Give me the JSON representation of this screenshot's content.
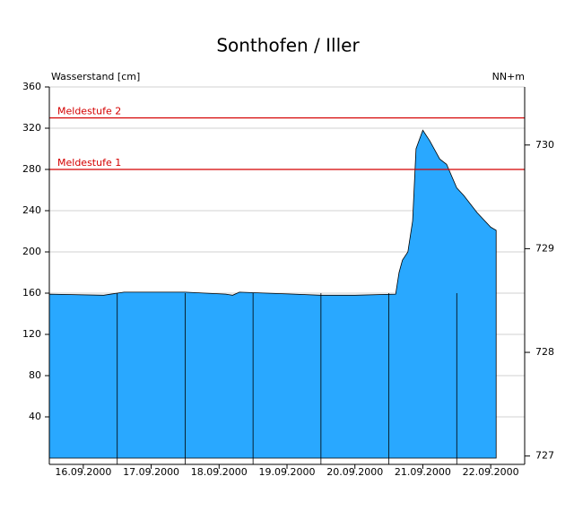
{
  "chart_data": {
    "type": "area",
    "title": "Sonthofen / Iller",
    "ylabel": "Wasserstand [cm]",
    "y2label": "NN+m",
    "x": [
      0,
      0.8,
      1.0,
      1.1,
      2.0,
      2.3,
      2.6,
      2.7,
      2.8,
      3.2,
      3.6,
      4.0,
      4.5,
      5.1,
      5.15,
      5.2,
      5.28,
      5.35,
      5.4,
      5.5,
      5.6,
      5.75,
      5.85,
      6.0,
      6.1,
      6.3,
      6.5,
      6.58
    ],
    "values": [
      159,
      158,
      160,
      161,
      161,
      160,
      159,
      158,
      161,
      160,
      159,
      158,
      158,
      159,
      180,
      192,
      200,
      230,
      300,
      318,
      308,
      290,
      285,
      262,
      255,
      238,
      224,
      221
    ],
    "color": "#29a8ff",
    "xlim": [
      0,
      7
    ],
    "xticks": [
      {
        "value": 0.5,
        "label": "16.09.2000"
      },
      {
        "value": 1.5,
        "label": "17.09.2000"
      },
      {
        "value": 2.5,
        "label": "18.09.2000"
      },
      {
        "value": 3.5,
        "label": "19.09.2000"
      },
      {
        "value": 4.5,
        "label": "20.09.2000"
      },
      {
        "value": 5.5,
        "label": "21.09.2000"
      },
      {
        "value": 6.5,
        "label": "22.09.2000"
      }
    ],
    "day_lines": [
      1,
      2,
      3,
      4,
      5,
      6
    ],
    "ylim": [
      0,
      360
    ],
    "yticks": [
      40,
      80,
      120,
      160,
      200,
      240,
      280,
      320,
      360
    ],
    "y2lim": [
      726.98,
      730.56
    ],
    "y2ticks": [
      727,
      728,
      729,
      730
    ],
    "grid": true,
    "thresholds": [
      {
        "label": "Meldestufe 2",
        "value": 330,
        "color": "#d40000"
      },
      {
        "label": "Meldestufe 1",
        "value": 280,
        "color": "#d40000"
      }
    ]
  }
}
